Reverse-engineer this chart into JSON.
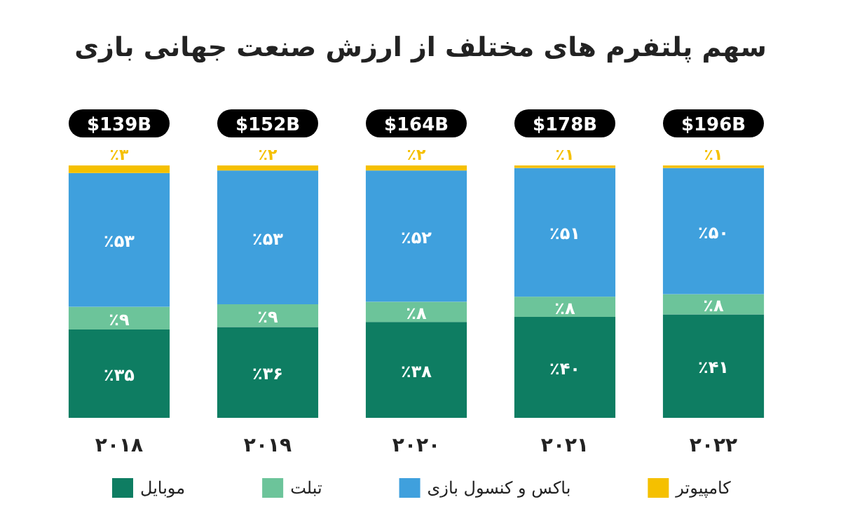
{
  "chart_data": {
    "type": "bar",
    "stacked": true,
    "title": "سهم پلتفرم های مختلف از ارزش صنعت جهانی بازی",
    "categories": [
      "۲۰۱۸",
      "۲۰۱۹",
      "۲۰۲۰",
      "۲۰۲۱",
      "۲۰۲۲"
    ],
    "series": [
      {
        "name": "موبایل",
        "color": "#0e7d62",
        "values": [
          35,
          36,
          38,
          40,
          41
        ],
        "value_labels": [
          "٪۳۵",
          "٪۳۶",
          "٪۳۸",
          "٪۴۰",
          "٪۴۱"
        ]
      },
      {
        "name": "تبلت",
        "color": "#6cc49a",
        "values": [
          9,
          9,
          8,
          8,
          8
        ],
        "value_labels": [
          "٪۹",
          "٪۹",
          "٪۸",
          "٪۸",
          "٪۸"
        ]
      },
      {
        "name": "باکس و کنسول بازی",
        "color": "#3fa0dd",
        "values": [
          53,
          53,
          52,
          51,
          50
        ],
        "value_labels": [
          "٪۵۳",
          "٪۵۳",
          "٪۵۲",
          "٪۵۱",
          "٪۵۰"
        ]
      },
      {
        "name": "کامپیوتر",
        "color": "#f5c000",
        "values": [
          3,
          2,
          2,
          1,
          1
        ],
        "value_labels": [
          "٪۳",
          "٪۲",
          "٪۲",
          "٪۱",
          "٪۱"
        ]
      }
    ],
    "annotations": [
      {
        "text": "$139B",
        "x": "۲۰۱۸",
        "y": 100
      },
      {
        "text": "$152B",
        "x": "۲۰۱۹",
        "y": 100
      },
      {
        "text": "$164B",
        "x": "۲۰۲۰",
        "y": 100
      },
      {
        "text": "$178B",
        "x": "۲۰۲۱",
        "y": 100
      },
      {
        "text": "$196B",
        "x": "۲۰۲۲",
        "y": 100
      }
    ],
    "legend": "bottom"
  }
}
